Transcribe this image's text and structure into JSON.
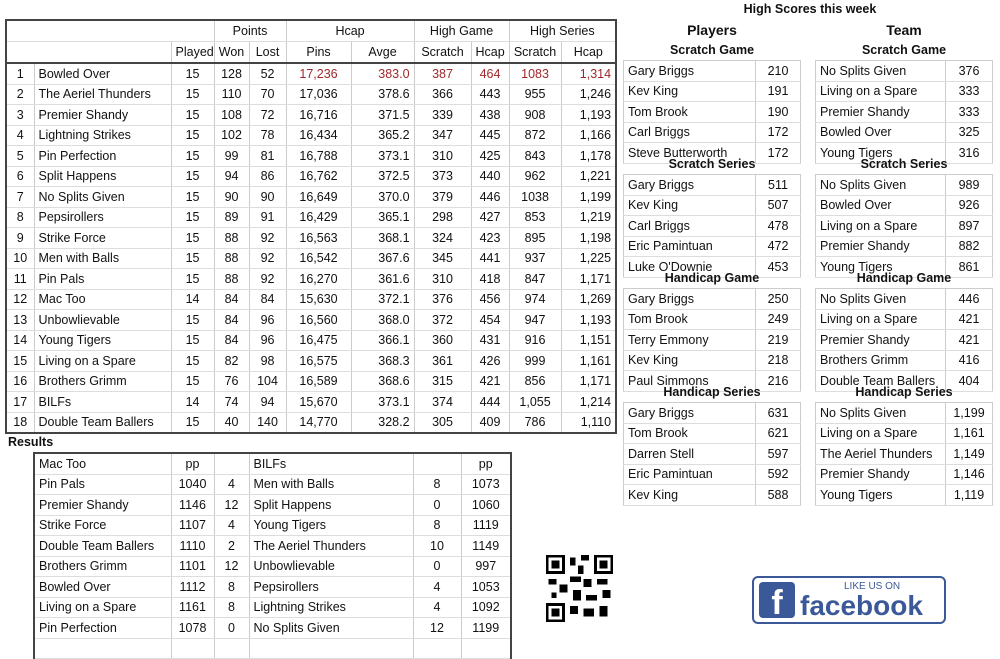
{
  "league": {
    "group_headers": [
      "Points",
      "Hcap",
      "High Game",
      "High Series"
    ],
    "columns": [
      "Played",
      "Won",
      "Lost",
      "Pins",
      "Avge",
      "Scratch",
      "Hcap",
      "Scratch",
      "Hcap"
    ],
    "rows": [
      [
        "1",
        "Bowled Over",
        "15",
        "128",
        "52",
        "17,236",
        "383.0",
        "387",
        "464",
        "1083",
        "1,314"
      ],
      [
        "2",
        "The Aeriel Thunders",
        "15",
        "110",
        "70",
        "17,036",
        "378.6",
        "366",
        "443",
        "955",
        "1,246"
      ],
      [
        "3",
        "Premier Shandy",
        "15",
        "108",
        "72",
        "16,716",
        "371.5",
        "339",
        "438",
        "908",
        "1,193"
      ],
      [
        "4",
        "Lightning Strikes",
        "15",
        "102",
        "78",
        "16,434",
        "365.2",
        "347",
        "445",
        "872",
        "1,166"
      ],
      [
        "5",
        "Pin Perfection",
        "15",
        "99",
        "81",
        "16,788",
        "373.1",
        "310",
        "425",
        "843",
        "1,178"
      ],
      [
        "6",
        "Split Happens",
        "15",
        "94",
        "86",
        "16,762",
        "372.5",
        "373",
        "440",
        "962",
        "1,221"
      ],
      [
        "7",
        "No Splits Given",
        "15",
        "90",
        "90",
        "16,649",
        "370.0",
        "379",
        "446",
        "1038",
        "1,199"
      ],
      [
        "8",
        "Pepsirollers",
        "15",
        "89",
        "91",
        "16,429",
        "365.1",
        "298",
        "427",
        "853",
        "1,219"
      ],
      [
        "9",
        "Strike Force",
        "15",
        "88",
        "92",
        "16,563",
        "368.1",
        "324",
        "423",
        "895",
        "1,198"
      ],
      [
        "10",
        "Men with Balls",
        "15",
        "88",
        "92",
        "16,542",
        "367.6",
        "345",
        "441",
        "937",
        "1,225"
      ],
      [
        "11",
        "Pin Pals",
        "15",
        "88",
        "92",
        "16,270",
        "361.6",
        "310",
        "418",
        "847",
        "1,171"
      ],
      [
        "12",
        "Mac Too",
        "14",
        "84",
        "84",
        "15,630",
        "372.1",
        "376",
        "456",
        "974",
        "1,269"
      ],
      [
        "13",
        "Unbowlievable",
        "15",
        "84",
        "96",
        "16,560",
        "368.0",
        "372",
        "454",
        "947",
        "1,193"
      ],
      [
        "14",
        "Young Tigers",
        "15",
        "84",
        "96",
        "16,475",
        "366.1",
        "360",
        "431",
        "916",
        "1,151"
      ],
      [
        "15",
        "Living on a Spare",
        "15",
        "82",
        "98",
        "16,575",
        "368.3",
        "361",
        "426",
        "999",
        "1,161"
      ],
      [
        "16",
        "Brothers Grimm",
        "15",
        "76",
        "104",
        "16,589",
        "368.6",
        "315",
        "421",
        "856",
        "1,171"
      ],
      [
        "17",
        "BILFs",
        "14",
        "74",
        "94",
        "15,670",
        "373.1",
        "374",
        "444",
        "1,055",
        "1,214"
      ],
      [
        "18",
        "Double Team Ballers",
        "15",
        "40",
        "140",
        "14,770",
        "328.2",
        "305",
        "409",
        "786",
        "1,110"
      ]
    ],
    "highlight_color": "#a0282b"
  },
  "high_scores": {
    "title": "High Scores this week",
    "players_label": "Players",
    "team_label": "Team",
    "players": [
      {
        "title": "Scratch Game",
        "rows": [
          [
            "Gary Briggs",
            "210"
          ],
          [
            "Kev King",
            "191"
          ],
          [
            "Tom Brook",
            "190"
          ],
          [
            "Carl Briggs",
            "172"
          ],
          [
            "Steve Butterworth",
            "172"
          ]
        ]
      },
      {
        "title": "Scratch Series",
        "rows": [
          [
            "Gary Briggs",
            "511"
          ],
          [
            "Kev King",
            "507"
          ],
          [
            "Carl Briggs",
            "478"
          ],
          [
            "Eric Pamintuan",
            "472"
          ],
          [
            "Luke O'Downie",
            "453"
          ]
        ]
      },
      {
        "title": "Handicap Game",
        "rows": [
          [
            "Gary Briggs",
            "250"
          ],
          [
            "Tom Brook",
            "249"
          ],
          [
            "Terry Emmony",
            "219"
          ],
          [
            "Kev King",
            "218"
          ],
          [
            "Paul Simmons",
            "216"
          ]
        ]
      },
      {
        "title": "Handicap Series",
        "rows": [
          [
            "Gary Briggs",
            "631"
          ],
          [
            "Tom Brook",
            "621"
          ],
          [
            "Darren Stell",
            "597"
          ],
          [
            "Eric Pamintuan",
            "592"
          ],
          [
            "Kev King",
            "588"
          ]
        ]
      }
    ],
    "team": [
      {
        "title": "Scratch Game",
        "rows": [
          [
            "No Splits Given",
            "376"
          ],
          [
            "Living on a Spare",
            "333"
          ],
          [
            "Premier Shandy",
            "333"
          ],
          [
            "Bowled Over",
            "325"
          ],
          [
            "Young Tigers",
            "316"
          ]
        ]
      },
      {
        "title": "Scratch Series",
        "rows": [
          [
            "No Splits Given",
            "989"
          ],
          [
            "Bowled Over",
            "926"
          ],
          [
            "Living on a Spare",
            "897"
          ],
          [
            "Premier Shandy",
            "882"
          ],
          [
            "Young Tigers",
            "861"
          ]
        ]
      },
      {
        "title": "Handicap Game",
        "rows": [
          [
            "No Splits Given",
            "446"
          ],
          [
            "Living on a Spare",
            "421"
          ],
          [
            "Premier Shandy",
            "421"
          ],
          [
            "Brothers Grimm",
            "416"
          ],
          [
            "Double Team Ballers",
            "404"
          ]
        ]
      },
      {
        "title": "Handicap Series",
        "rows": [
          [
            "No Splits Given",
            "1,199"
          ],
          [
            "Living on a Spare",
            "1,161"
          ],
          [
            "The Aeriel Thunders",
            "1,149"
          ],
          [
            "Premier Shandy",
            "1,146"
          ],
          [
            "Young Tigers",
            "1,119"
          ]
        ]
      }
    ]
  },
  "results": {
    "title": "Results",
    "header": [
      "Mac Too",
      "pp",
      "",
      "BILFs",
      "",
      "pp"
    ],
    "rows": [
      [
        "Pin Pals",
        "1040",
        "4",
        "Men with Balls",
        "8",
        "1073"
      ],
      [
        "Premier Shandy",
        "1146",
        "12",
        "Split Happens",
        "0",
        "1060"
      ],
      [
        "Strike Force",
        "1107",
        "4",
        "Young Tigers",
        "8",
        "1119"
      ],
      [
        "Double Team Ballers",
        "1110",
        "2",
        "The Aeriel Thunders",
        "10",
        "1149"
      ],
      [
        "Brothers Grimm",
        "1101",
        "12",
        "Unbowlievable",
        "0",
        "997"
      ],
      [
        "Bowled Over",
        "1112",
        "8",
        "Pepsirollers",
        "4",
        "1053"
      ],
      [
        "Living on a Spare",
        "1161",
        "8",
        "Lightning Strikes",
        "4",
        "1092"
      ],
      [
        "Pin Perfection",
        "1078",
        "0",
        "No Splits Given",
        "12",
        "1199"
      ]
    ]
  },
  "facebook": {
    "line1": "LIKE US ON",
    "line2": "facebook",
    "color": "#3b5998"
  }
}
